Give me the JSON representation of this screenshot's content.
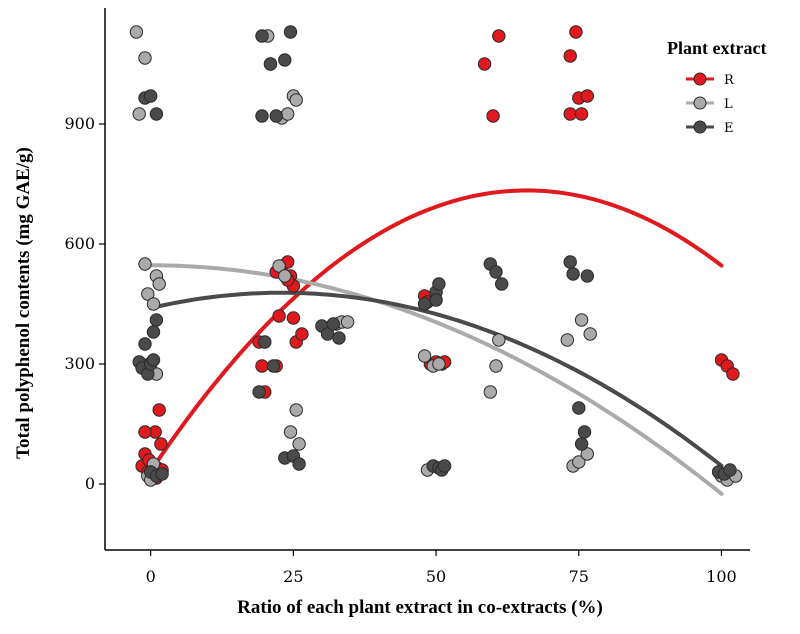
{
  "chart_data": {
    "type": "scatter",
    "xlabel": "Ratio of each plant extract in co-extracts (%)",
    "ylabel": "Total polyphenol contents (mg GAE/g)",
    "xlim": [
      -8,
      105
    ],
    "ylim": [
      -165,
      1190
    ],
    "x_ticks": [
      0,
      25,
      50,
      75,
      100
    ],
    "y_ticks": [
      0,
      300,
      600,
      900
    ],
    "legend": {
      "title": "Plant extract",
      "position": "top-right"
    },
    "series": [
      {
        "name": "R",
        "color": "#e0191e",
        "points": [
          [
            -1,
            75
          ],
          [
            -1.5,
            45
          ],
          [
            -0.5,
            30
          ],
          [
            0,
            20
          ],
          [
            1,
            15
          ],
          [
            0.5,
            35
          ],
          [
            -0.3,
            60
          ],
          [
            0.8,
            130
          ],
          [
            1.5,
            185
          ],
          [
            1.8,
            100
          ],
          [
            1.2,
            40
          ],
          [
            2,
            35
          ],
          [
            -1,
            130
          ],
          [
            19,
            355
          ],
          [
            19.5,
            295
          ],
          [
            20,
            230
          ],
          [
            22,
            295
          ],
          [
            22.5,
            420
          ],
          [
            22,
            530
          ],
          [
            23,
            545
          ],
          [
            24,
            555
          ],
          [
            24.5,
            520
          ],
          [
            25,
            495
          ],
          [
            25,
            415
          ],
          [
            25.5,
            355
          ],
          [
            26.5,
            375
          ],
          [
            24,
            510
          ],
          [
            48,
            470
          ],
          [
            48.5,
            455
          ],
          [
            49,
            300
          ],
          [
            50,
            305
          ],
          [
            51,
            300
          ],
          [
            51.5,
            305
          ],
          [
            58.5,
            1050
          ],
          [
            60,
            920
          ],
          [
            61,
            1120
          ],
          [
            73.5,
            1070
          ],
          [
            73.5,
            925
          ],
          [
            74.5,
            1130
          ],
          [
            75,
            965
          ],
          [
            75.5,
            925
          ],
          [
            76.5,
            970
          ],
          [
            100,
            310
          ],
          [
            101,
            295
          ],
          [
            102,
            275
          ]
        ]
      },
      {
        "name": "L",
        "color": "#aaaaaa",
        "points": [
          [
            -2.5,
            1130
          ],
          [
            -1,
            550
          ],
          [
            -0.5,
            475
          ],
          [
            0.5,
            450
          ],
          [
            1,
            520
          ],
          [
            1.5,
            500
          ],
          [
            1,
            275
          ],
          [
            -0.2,
            300
          ],
          [
            0.5,
            50
          ],
          [
            -0.5,
            20
          ],
          [
            0,
            10
          ],
          [
            -2,
            925
          ],
          [
            -1,
            1065
          ],
          [
            20.5,
            1120
          ],
          [
            21,
            1050
          ],
          [
            23,
            915
          ],
          [
            22.5,
            545
          ],
          [
            23.5,
            520
          ],
          [
            24,
            925
          ],
          [
            24.5,
            130
          ],
          [
            25,
            970
          ],
          [
            25.5,
            960
          ],
          [
            25.5,
            185
          ],
          [
            26,
            100
          ],
          [
            32.5,
            400
          ],
          [
            33.5,
            405
          ],
          [
            34.5,
            405
          ],
          [
            48,
            320
          ],
          [
            48.5,
            35
          ],
          [
            49.5,
            295
          ],
          [
            50.5,
            300
          ],
          [
            59.5,
            230
          ],
          [
            60.5,
            295
          ],
          [
            61,
            360
          ],
          [
            74,
            45
          ],
          [
            75,
            55
          ],
          [
            75.5,
            410
          ],
          [
            76.5,
            75
          ],
          [
            73,
            360
          ],
          [
            77,
            375
          ],
          [
            100,
            20
          ],
          [
            101,
            10
          ],
          [
            102.5,
            20
          ]
        ]
      },
      {
        "name": "E",
        "color": "#4a4a4a",
        "points": [
          [
            -2,
            305
          ],
          [
            -1.5,
            290
          ],
          [
            -0.5,
            275
          ],
          [
            0,
            300
          ],
          [
            0.5,
            310
          ],
          [
            0.5,
            380
          ],
          [
            1,
            410
          ],
          [
            -1,
            350
          ],
          [
            -1,
            965
          ],
          [
            0,
            970
          ],
          [
            1,
            925
          ],
          [
            0,
            30
          ],
          [
            1,
            20
          ],
          [
            2,
            25
          ],
          [
            19.5,
            1120
          ],
          [
            21,
            1050
          ],
          [
            22,
            920
          ],
          [
            23.5,
            1060
          ],
          [
            24.5,
            1130
          ],
          [
            19.5,
            920
          ],
          [
            19,
            230
          ],
          [
            20,
            355
          ],
          [
            21.5,
            295
          ],
          [
            23.5,
            65
          ],
          [
            25,
            70
          ],
          [
            26,
            50
          ],
          [
            30,
            395
          ],
          [
            31,
            375
          ],
          [
            32,
            400
          ],
          [
            33,
            365
          ],
          [
            48,
            450
          ],
          [
            50,
            480
          ],
          [
            50.5,
            500
          ],
          [
            50,
            460
          ],
          [
            49.5,
            45
          ],
          [
            50.5,
            40
          ],
          [
            51,
            35
          ],
          [
            51.5,
            45
          ],
          [
            59.5,
            550
          ],
          [
            60.5,
            530
          ],
          [
            61.5,
            500
          ],
          [
            73.5,
            555
          ],
          [
            74,
            525
          ],
          [
            75,
            190
          ],
          [
            75.5,
            100
          ],
          [
            76,
            130
          ],
          [
            76.5,
            520
          ],
          [
            99.5,
            30
          ],
          [
            100.5,
            25
          ],
          [
            101.5,
            35
          ]
        ]
      }
    ]
  }
}
